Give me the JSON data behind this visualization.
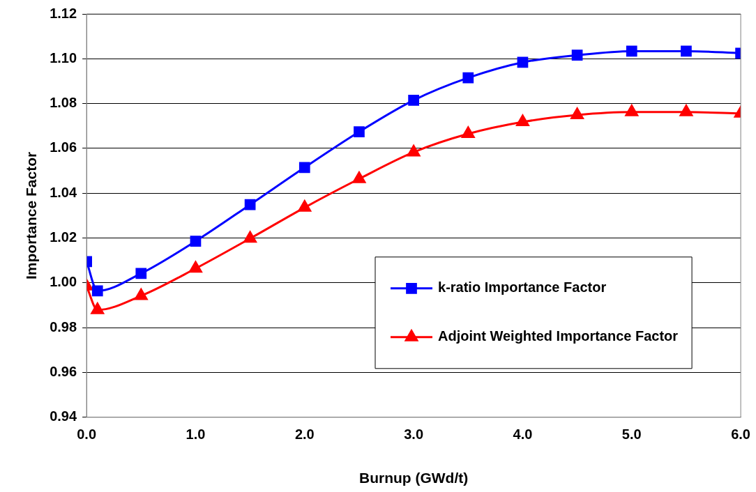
{
  "chart_data": {
    "type": "line",
    "xlabel": "Burnup (GWd/t)",
    "ylabel": "Importance Factor",
    "x": [
      0,
      0.1,
      0.5,
      1.0,
      1.5,
      2.0,
      2.5,
      3.0,
      3.5,
      4.0,
      4.5,
      5.0,
      5.5,
      6.0
    ],
    "series": [
      {
        "name": "k-ratio Importance Factor",
        "color": "#0000ff",
        "marker": "square",
        "values": [
          1.0095,
          0.9964,
          1.0042,
          1.0186,
          1.0349,
          1.0515,
          1.0674,
          1.0815,
          1.0915,
          1.0984,
          1.1016,
          1.1034,
          1.1034,
          1.1025
        ]
      },
      {
        "name": "Adjoint Weighted Importance Factor",
        "color": "#ff0000",
        "marker": "triangle",
        "values": [
          0.9985,
          0.9879,
          0.9942,
          1.0064,
          1.0198,
          1.0336,
          1.0464,
          1.0583,
          1.0665,
          1.0718,
          1.0749,
          1.0762,
          1.0762,
          1.0756
        ]
      }
    ],
    "xlim": [
      0,
      6
    ],
    "xticks": [
      {
        "value": 0,
        "label": "0.0"
      },
      {
        "value": 1,
        "label": "1.0"
      },
      {
        "value": 2,
        "label": "2.0"
      },
      {
        "value": 3,
        "label": "3.0"
      },
      {
        "value": 4,
        "label": "4.0"
      },
      {
        "value": 5,
        "label": "5.0"
      },
      {
        "value": 6,
        "label": "6.0"
      }
    ],
    "ylim": [
      0.94,
      1.12
    ],
    "yticks": [
      {
        "value": 0.94,
        "label": "0.94"
      },
      {
        "value": 0.96,
        "label": "0.96"
      },
      {
        "value": 0.98,
        "label": "0.98"
      },
      {
        "value": 1.0,
        "label": "1.00"
      },
      {
        "value": 1.02,
        "label": "1.02"
      },
      {
        "value": 1.04,
        "label": "1.04"
      },
      {
        "value": 1.06,
        "label": "1.06"
      },
      {
        "value": 1.08,
        "label": "1.08"
      },
      {
        "value": 1.1,
        "label": "1.10"
      },
      {
        "value": 1.12,
        "label": "1.12"
      }
    ],
    "grid": "y",
    "legend": "bottom right",
    "line_style": "solid"
  }
}
